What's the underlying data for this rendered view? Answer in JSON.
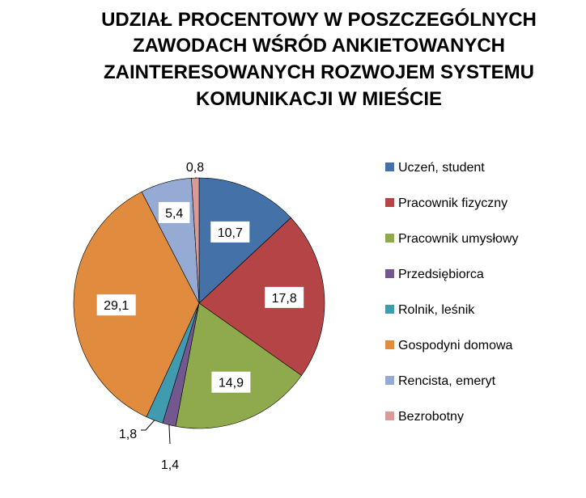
{
  "chart_data": {
    "type": "pie",
    "title_lines": [
      "UDZIAŁ PROCENTOWY W POSZCZEGÓLNYCH",
      "ZAWODACH WŚRÓD ANKIETOWANYCH",
      "ZAINTERESOWANYCH ROZWOJEM SYSTEMU",
      "KOMUNIKACJI W MIEŚCIE"
    ],
    "categories": [
      "Uczeń, student",
      "Pracownik fizyczny",
      "Pracownik umysłowy",
      "Przedsiębiorca",
      "Rolnik, leśnik",
      "Gospodyni domowa",
      "Rencista, emeryt",
      "Bezrobotny"
    ],
    "values": [
      10.7,
      17.8,
      14.9,
      1.4,
      1.8,
      29.1,
      5.4,
      0.8
    ],
    "value_labels": [
      "10,7",
      "17,8",
      "14,9",
      "1,4",
      "1,8",
      "29,1",
      "5,4",
      "0,8"
    ],
    "colors": [
      "#4472A8",
      "#B54446",
      "#8EAA4C",
      "#73578F",
      "#3F9BB0",
      "#E08B3E",
      "#95ABD4",
      "#D99A98"
    ],
    "slice_border_color": "#000000",
    "legend_placement": "right"
  }
}
